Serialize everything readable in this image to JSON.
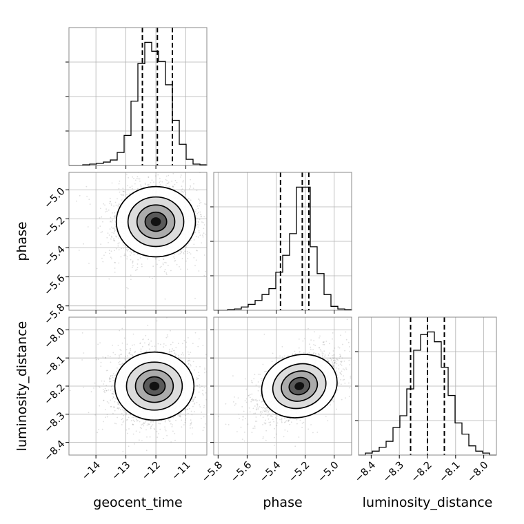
{
  "chart_data": {
    "type": "corner",
    "parameters": [
      "geocent_time",
      "phase",
      "luminosity_distance"
    ],
    "grid": true,
    "axes": {
      "geocent_time": {
        "label": "geocent_time",
        "range": [
          -14.9,
          -10.3
        ],
        "ticks": [
          -14,
          -13,
          -12,
          -11
        ],
        "tick_labels": [
          "−14",
          "−13",
          "−12",
          "−11"
        ]
      },
      "phase": {
        "label": "phase",
        "range": [
          -5.83,
          -4.88
        ],
        "ticks": [
          -5.8,
          -5.6,
          -5.4,
          -5.2,
          -5.0
        ],
        "tick_labels": [
          "−5.8",
          "−5.6",
          "−5.4",
          "−5.2",
          "−5.0"
        ]
      },
      "luminosity_distance": {
        "label": "luminosity_distance",
        "range": [
          -8.445,
          -7.955
        ],
        "ticks": [
          -8.4,
          -8.3,
          -8.2,
          -8.1,
          -8.0
        ],
        "tick_labels": [
          "−8.4",
          "−8.3",
          "−8.2",
          "−8.1",
          "−8.0"
        ]
      }
    },
    "marginals": [
      {
        "parameter": "geocent_time",
        "bin_edges": [
          -14.9,
          -14.67,
          -14.44,
          -14.21,
          -13.98,
          -13.75,
          -13.52,
          -13.29,
          -13.06,
          -12.83,
          -12.6,
          -12.37,
          -12.14,
          -11.91,
          -11.68,
          -11.45,
          -11.22,
          -10.99,
          -10.76,
          -10.53,
          -10.3
        ],
        "counts": [
          0,
          0,
          1,
          2,
          3,
          5,
          8,
          19,
          44,
          94,
          149,
          180,
          167,
          152,
          118,
          66,
          31,
          9,
          2,
          1
        ],
        "quantiles": [
          -12.45,
          -11.95,
          -11.45
        ]
      },
      {
        "parameter": "phase",
        "bin_edges": [
          -5.83,
          -5.7825,
          -5.735,
          -5.6875,
          -5.64,
          -5.5925,
          -5.545,
          -5.4975,
          -5.45,
          -5.4025,
          -5.355,
          -5.3075,
          -5.26,
          -5.2125,
          -5.165,
          -5.1175,
          -5.07,
          -5.0225,
          -4.975,
          -4.9275,
          -4.88
        ],
        "counts": [
          0,
          0,
          1,
          2,
          5,
          9,
          15,
          24,
          33,
          58,
          84,
          117,
          188,
          188,
          97,
          56,
          24,
          6,
          2,
          1
        ],
        "quantiles": [
          -5.37,
          -5.22,
          -5.175
        ]
      },
      {
        "parameter": "luminosity_distance",
        "bin_edges": [
          -8.445,
          -8.4205,
          -8.396,
          -8.3715,
          -8.347,
          -8.3225,
          -8.298,
          -8.2735,
          -8.249,
          -8.2245,
          -8.2,
          -8.1755,
          -8.151,
          -8.1265,
          -8.102,
          -8.0775,
          -8.053,
          -8.0285,
          -8.004,
          -7.9795,
          -7.955
        ],
        "counts": [
          0,
          3,
          6,
          12,
          21,
          42,
          60,
          101,
          160,
          184,
          188,
          173,
          134,
          91,
          49,
          32,
          14,
          6,
          3,
          0
        ],
        "quantiles": [
          -8.26,
          -8.2,
          -8.14
        ]
      }
    ],
    "joint": [
      {
        "x": "geocent_time",
        "y": "phase",
        "center": [
          -12.0,
          -5.22
        ],
        "sigma": [
          0.6,
          0.11
        ],
        "rho": 0.0
      },
      {
        "x": "geocent_time",
        "y": "luminosity_distance",
        "center": [
          -12.05,
          -8.2
        ],
        "sigma": [
          0.6,
          0.055
        ],
        "rho": 0.0
      },
      {
        "x": "phase",
        "y": "luminosity_distance",
        "center": [
          -5.24,
          -8.2
        ],
        "sigma": [
          0.12,
          0.05
        ],
        "rho": 0.5
      }
    ]
  }
}
